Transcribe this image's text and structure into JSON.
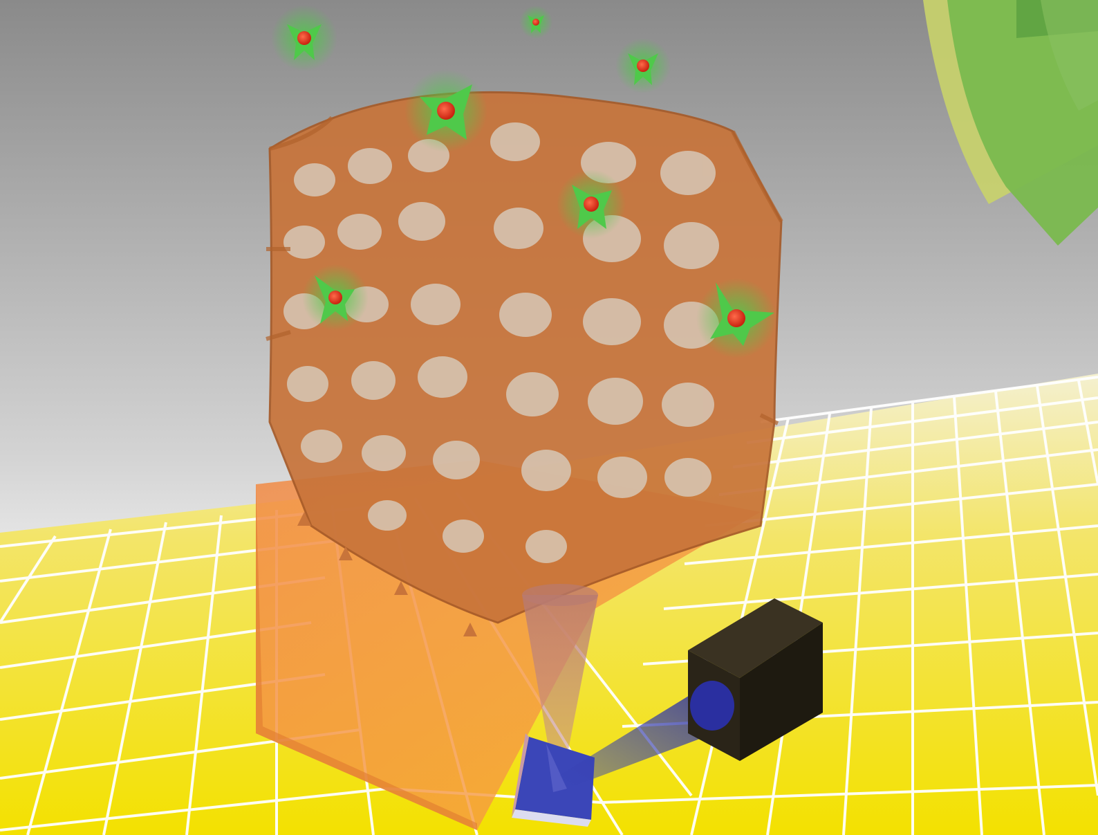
{
  "scene": {
    "description_visible_text": "",
    "palette": {
      "sky_top": "#8a8a8a",
      "sky_bottom": "#f2f2f2",
      "floor_yellow": "#f3e100",
      "floor_grid": "#ffffff",
      "lattice": "#c8743a",
      "lattice_dark": "#a65a28",
      "slab_orange": "#f7933f",
      "molecule_green": "#4fc94a",
      "molecule_core": "#e5331c",
      "detector_black": "#2a2418",
      "prism_blue": "#3b46b8",
      "arc_light": "#c9d36a",
      "arc_green": "#7ab94e"
    },
    "objects": [
      "gyroid-lattice",
      "orange-substrate",
      "green-molecules",
      "light-cone",
      "prism",
      "detector-camera",
      "corner-arcs",
      "yellow-grid-floor"
    ]
  }
}
